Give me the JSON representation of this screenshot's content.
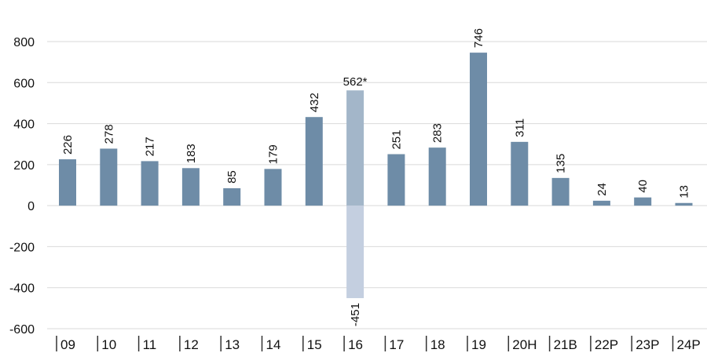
{
  "chart_data": {
    "type": "bar",
    "title": "",
    "xlabel": "",
    "ylabel": "",
    "ylim": [
      -600,
      800
    ],
    "yticks": [
      800,
      600,
      400,
      200,
      0,
      -200,
      -400,
      -600
    ],
    "grid": true,
    "legend": "none",
    "colors": {
      "bar": "#6e8ca7",
      "highlight_positive": "#a3b6c9",
      "highlight_negative": "#c4cfe0",
      "grid": "#d9d9d9",
      "text": "#111111"
    },
    "categories": [
      "09",
      "10",
      "11",
      "12",
      "13",
      "14",
      "15",
      "16",
      "17",
      "18",
      "19",
      "20H",
      "21B",
      "22P",
      "23P",
      "24P"
    ],
    "values": [
      226,
      278,
      217,
      183,
      85,
      179,
      432,
      562,
      251,
      283,
      746,
      311,
      135,
      24,
      40,
      13
    ],
    "value_labels": [
      "226",
      "278",
      "217",
      "183",
      "85",
      "179",
      "432",
      "562*",
      "251",
      "283",
      "746",
      "311",
      "135",
      "24",
      "40",
      "13"
    ],
    "negative_values": [
      {
        "category": "16",
        "value": -451,
        "label": "-451"
      }
    ],
    "highlight_category": "16"
  }
}
